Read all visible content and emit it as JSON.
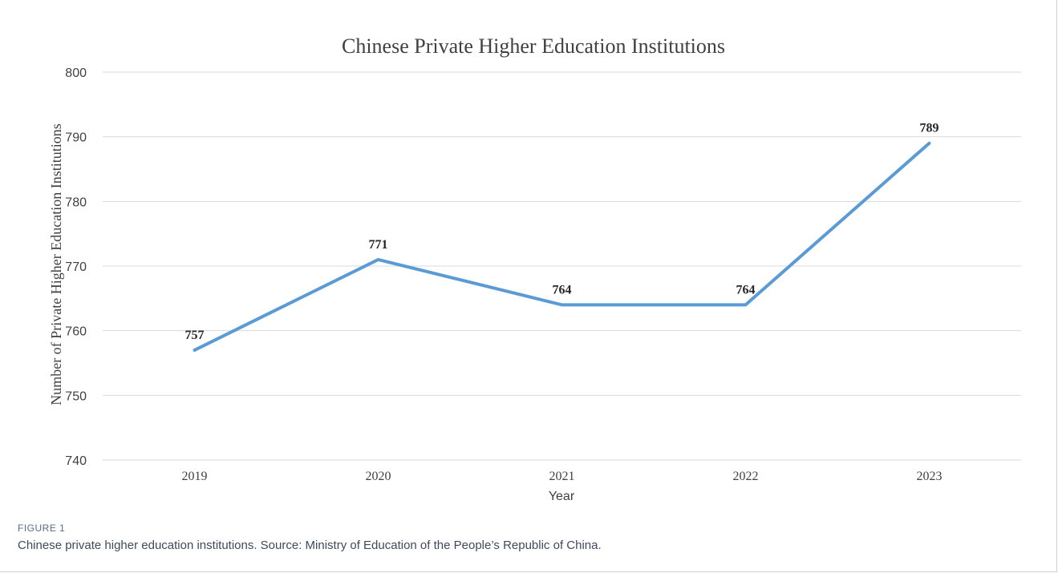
{
  "figure": {
    "label": "FIGURE 1",
    "caption": "Chinese private higher education institutions. Source: Ministry of Education of the People’s Republic of China."
  },
  "chart_data": {
    "type": "line",
    "title": "Chinese Private Higher Education Institutions",
    "xlabel": "Year",
    "ylabel": "Number of Private Higher Education Institutions",
    "categories": [
      "2019",
      "2020",
      "2021",
      "2022",
      "2023"
    ],
    "series": [
      {
        "values": [
          757,
          771,
          764,
          764,
          789
        ],
        "color": "#5b9bd5"
      }
    ],
    "data_labels": [
      "757",
      "771",
      "764",
      "764",
      "789"
    ],
    "ylim": [
      740,
      800
    ],
    "yticks": [
      740,
      750,
      760,
      770,
      780,
      790,
      800
    ],
    "grid": true,
    "legend": "none"
  }
}
